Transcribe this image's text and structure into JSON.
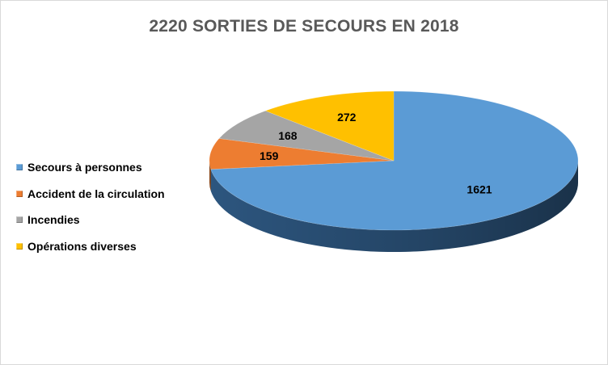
{
  "chart_data": {
    "type": "pie",
    "title": "2220 SORTIES DE SECOURS EN 2018",
    "categories": [
      "Secours à personnes",
      "Accident de la circulation",
      "Incendies",
      "Opérations diverses"
    ],
    "values": [
      1621,
      159,
      168,
      272
    ],
    "colors": [
      "#5b9bd5",
      "#ed7d31",
      "#a5a5a5",
      "#ffc000"
    ],
    "side_colors": [
      "#2f5a85",
      "#9c4d17",
      "#6b6b6b",
      "#a67c00"
    ],
    "legend_position": "left",
    "style": "3d-pie",
    "data_labels": [
      "1621",
      "159",
      "168",
      "272"
    ]
  }
}
